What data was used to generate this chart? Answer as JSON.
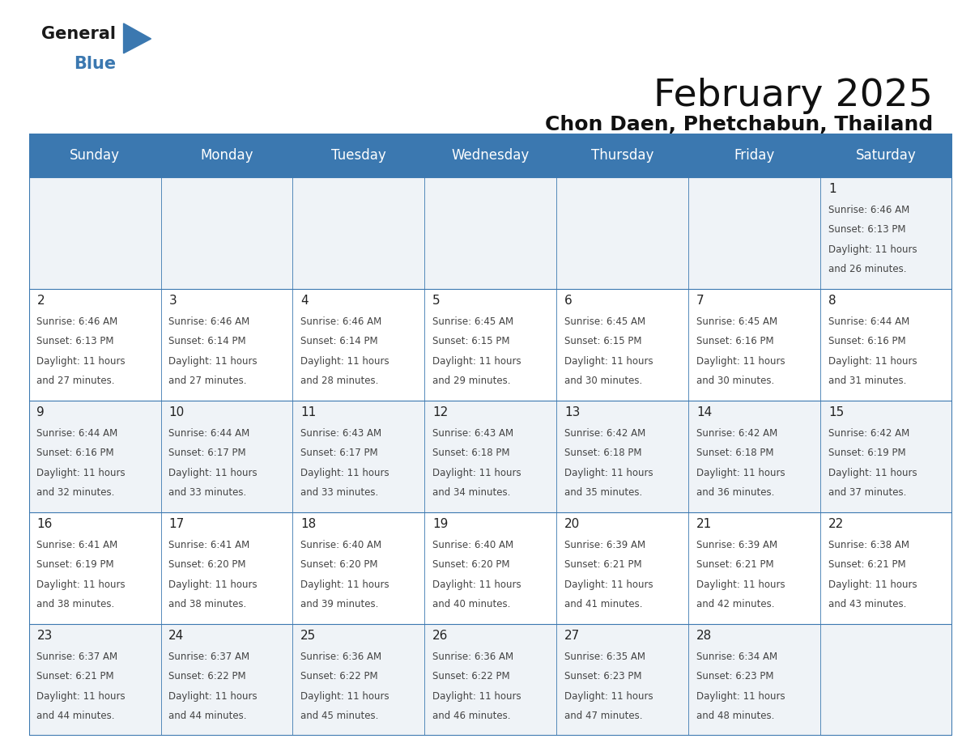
{
  "title": "February 2025",
  "subtitle": "Chon Daen, Phetchabun, Thailand",
  "header_bg": "#3b78b0",
  "header_text_color": "#ffffff",
  "day_headers": [
    "Sunday",
    "Monday",
    "Tuesday",
    "Wednesday",
    "Thursday",
    "Friday",
    "Saturday"
  ],
  "days": [
    {
      "day": 1,
      "col": 6,
      "row": 0,
      "sunrise": "6:46 AM",
      "sunset": "6:13 PM",
      "daylight_mins": "26"
    },
    {
      "day": 2,
      "col": 0,
      "row": 1,
      "sunrise": "6:46 AM",
      "sunset": "6:13 PM",
      "daylight_mins": "27"
    },
    {
      "day": 3,
      "col": 1,
      "row": 1,
      "sunrise": "6:46 AM",
      "sunset": "6:14 PM",
      "daylight_mins": "27"
    },
    {
      "day": 4,
      "col": 2,
      "row": 1,
      "sunrise": "6:46 AM",
      "sunset": "6:14 PM",
      "daylight_mins": "28"
    },
    {
      "day": 5,
      "col": 3,
      "row": 1,
      "sunrise": "6:45 AM",
      "sunset": "6:15 PM",
      "daylight_mins": "29"
    },
    {
      "day": 6,
      "col": 4,
      "row": 1,
      "sunrise": "6:45 AM",
      "sunset": "6:15 PM",
      "daylight_mins": "30"
    },
    {
      "day": 7,
      "col": 5,
      "row": 1,
      "sunrise": "6:45 AM",
      "sunset": "6:16 PM",
      "daylight_mins": "30"
    },
    {
      "day": 8,
      "col": 6,
      "row": 1,
      "sunrise": "6:44 AM",
      "sunset": "6:16 PM",
      "daylight_mins": "31"
    },
    {
      "day": 9,
      "col": 0,
      "row": 2,
      "sunrise": "6:44 AM",
      "sunset": "6:16 PM",
      "daylight_mins": "32"
    },
    {
      "day": 10,
      "col": 1,
      "row": 2,
      "sunrise": "6:44 AM",
      "sunset": "6:17 PM",
      "daylight_mins": "33"
    },
    {
      "day": 11,
      "col": 2,
      "row": 2,
      "sunrise": "6:43 AM",
      "sunset": "6:17 PM",
      "daylight_mins": "33"
    },
    {
      "day": 12,
      "col": 3,
      "row": 2,
      "sunrise": "6:43 AM",
      "sunset": "6:18 PM",
      "daylight_mins": "34"
    },
    {
      "day": 13,
      "col": 4,
      "row": 2,
      "sunrise": "6:42 AM",
      "sunset": "6:18 PM",
      "daylight_mins": "35"
    },
    {
      "day": 14,
      "col": 5,
      "row": 2,
      "sunrise": "6:42 AM",
      "sunset": "6:18 PM",
      "daylight_mins": "36"
    },
    {
      "day": 15,
      "col": 6,
      "row": 2,
      "sunrise": "6:42 AM",
      "sunset": "6:19 PM",
      "daylight_mins": "37"
    },
    {
      "day": 16,
      "col": 0,
      "row": 3,
      "sunrise": "6:41 AM",
      "sunset": "6:19 PM",
      "daylight_mins": "38"
    },
    {
      "day": 17,
      "col": 1,
      "row": 3,
      "sunrise": "6:41 AM",
      "sunset": "6:20 PM",
      "daylight_mins": "38"
    },
    {
      "day": 18,
      "col": 2,
      "row": 3,
      "sunrise": "6:40 AM",
      "sunset": "6:20 PM",
      "daylight_mins": "39"
    },
    {
      "day": 19,
      "col": 3,
      "row": 3,
      "sunrise": "6:40 AM",
      "sunset": "6:20 PM",
      "daylight_mins": "40"
    },
    {
      "day": 20,
      "col": 4,
      "row": 3,
      "sunrise": "6:39 AM",
      "sunset": "6:21 PM",
      "daylight_mins": "41"
    },
    {
      "day": 21,
      "col": 5,
      "row": 3,
      "sunrise": "6:39 AM",
      "sunset": "6:21 PM",
      "daylight_mins": "42"
    },
    {
      "day": 22,
      "col": 6,
      "row": 3,
      "sunrise": "6:38 AM",
      "sunset": "6:21 PM",
      "daylight_mins": "43"
    },
    {
      "day": 23,
      "col": 0,
      "row": 4,
      "sunrise": "6:37 AM",
      "sunset": "6:21 PM",
      "daylight_mins": "44"
    },
    {
      "day": 24,
      "col": 1,
      "row": 4,
      "sunrise": "6:37 AM",
      "sunset": "6:22 PM",
      "daylight_mins": "44"
    },
    {
      "day": 25,
      "col": 2,
      "row": 4,
      "sunrise": "6:36 AM",
      "sunset": "6:22 PM",
      "daylight_mins": "45"
    },
    {
      "day": 26,
      "col": 3,
      "row": 4,
      "sunrise": "6:36 AM",
      "sunset": "6:22 PM",
      "daylight_mins": "46"
    },
    {
      "day": 27,
      "col": 4,
      "row": 4,
      "sunrise": "6:35 AM",
      "sunset": "6:23 PM",
      "daylight_mins": "47"
    },
    {
      "day": 28,
      "col": 5,
      "row": 4,
      "sunrise": "6:34 AM",
      "sunset": "6:23 PM",
      "daylight_mins": "48"
    }
  ],
  "logo_general_color": "#1a1a1a",
  "logo_blue_color": "#3b78b0",
  "logo_triangle_color": "#3b78b0",
  "title_fontsize": 34,
  "subtitle_fontsize": 18,
  "header_fontsize": 12,
  "day_num_fontsize": 11,
  "cell_text_fontsize": 8.5,
  "num_rows": 5,
  "num_cols": 7,
  "grid_line_color": "#3b78b0",
  "cell_bg_light": "#eff3f7",
  "cell_bg_white": "#ffffff"
}
